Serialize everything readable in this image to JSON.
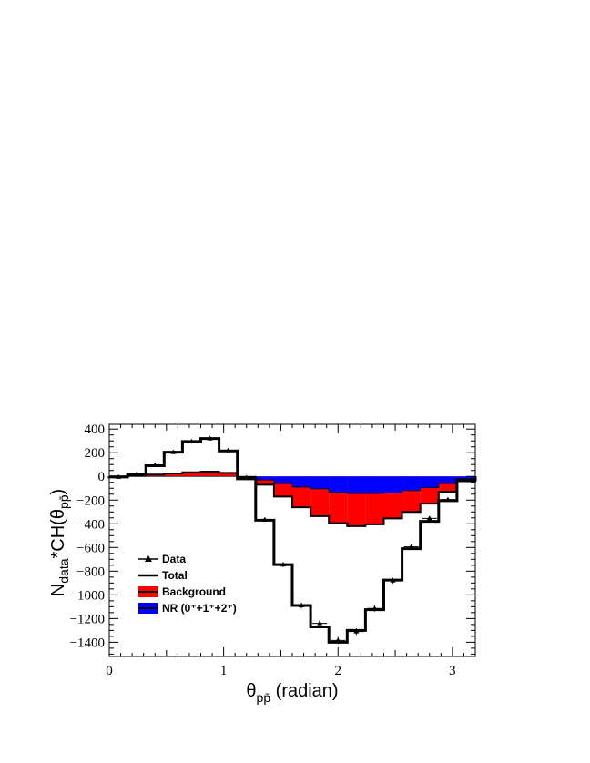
{
  "chart_data": {
    "type": "histogram",
    "xlabel_main": "θ",
    "xlabel_sub": "pp̄",
    "xlabel_rest": " (radian)",
    "ylabel_main": "N",
    "ylabel_sub1": "data",
    "ylabel_mid": "*CH(θ",
    "ylabel_sub2": "pp̄",
    "ylabel_end": ")",
    "xlim": [
      0,
      3.2
    ],
    "ylim": [
      -1520,
      440
    ],
    "x_ticks": [
      0,
      1,
      2,
      3
    ],
    "x_tick_labels": [
      "0",
      "1",
      "2",
      "3"
    ],
    "y_ticks": [
      400,
      200,
      0,
      -200,
      -400,
      -600,
      -800,
      -1000,
      -1200,
      -1400
    ],
    "y_tick_labels": [
      "400",
      "200",
      "0",
      "−200",
      "−400",
      "−600",
      "−800",
      "−1000",
      "−1200",
      "−1400"
    ],
    "bin_edges": [
      0,
      0.16,
      0.32,
      0.48,
      0.64,
      0.8,
      0.96,
      1.12,
      1.28,
      1.44,
      1.6,
      1.76,
      1.92,
      2.08,
      2.24,
      2.4,
      2.56,
      2.72,
      2.88,
      3.04,
      3.2
    ],
    "series": [
      {
        "name": "Data",
        "values": [
          -5,
          20,
          95,
          205,
          295,
          320,
          220,
          -10,
          -365,
          -745,
          -1090,
          -1240,
          -1385,
          -1310,
          -1115,
          -880,
          -595,
          -355,
          -195,
          -30
        ],
        "errors": [
          10,
          12,
          14,
          16,
          18,
          18,
          16,
          14,
          18,
          20,
          25,
          28,
          30,
          28,
          26,
          24,
          22,
          20,
          16,
          12
        ]
      },
      {
        "name": "Total",
        "values": [
          -5,
          15,
          90,
          205,
          295,
          320,
          215,
          -20,
          -370,
          -745,
          -1090,
          -1270,
          -1400,
          -1300,
          -1125,
          -875,
          -610,
          -380,
          -205,
          -30
        ]
      },
      {
        "name": "Background",
        "color": "#ff0000",
        "values": [
          0,
          5,
          15,
          25,
          35,
          40,
          30,
          -5,
          -70,
          -170,
          -260,
          -335,
          -395,
          -420,
          -405,
          -355,
          -300,
          -230,
          -130,
          -40
        ]
      },
      {
        "name": "NR (0⁺+1⁺+2⁺)",
        "color": "#0000ff",
        "values": [
          0,
          0,
          0,
          0,
          0,
          0,
          0,
          0,
          -30,
          -60,
          -90,
          -105,
          -135,
          -145,
          -145,
          -140,
          -120,
          -95,
          -60,
          -20
        ]
      }
    ],
    "legend": {
      "placement": "lower-left",
      "entries": [
        "Data",
        "Total",
        "Background",
        "NR (0⁺+1⁺+2⁺)"
      ]
    }
  }
}
